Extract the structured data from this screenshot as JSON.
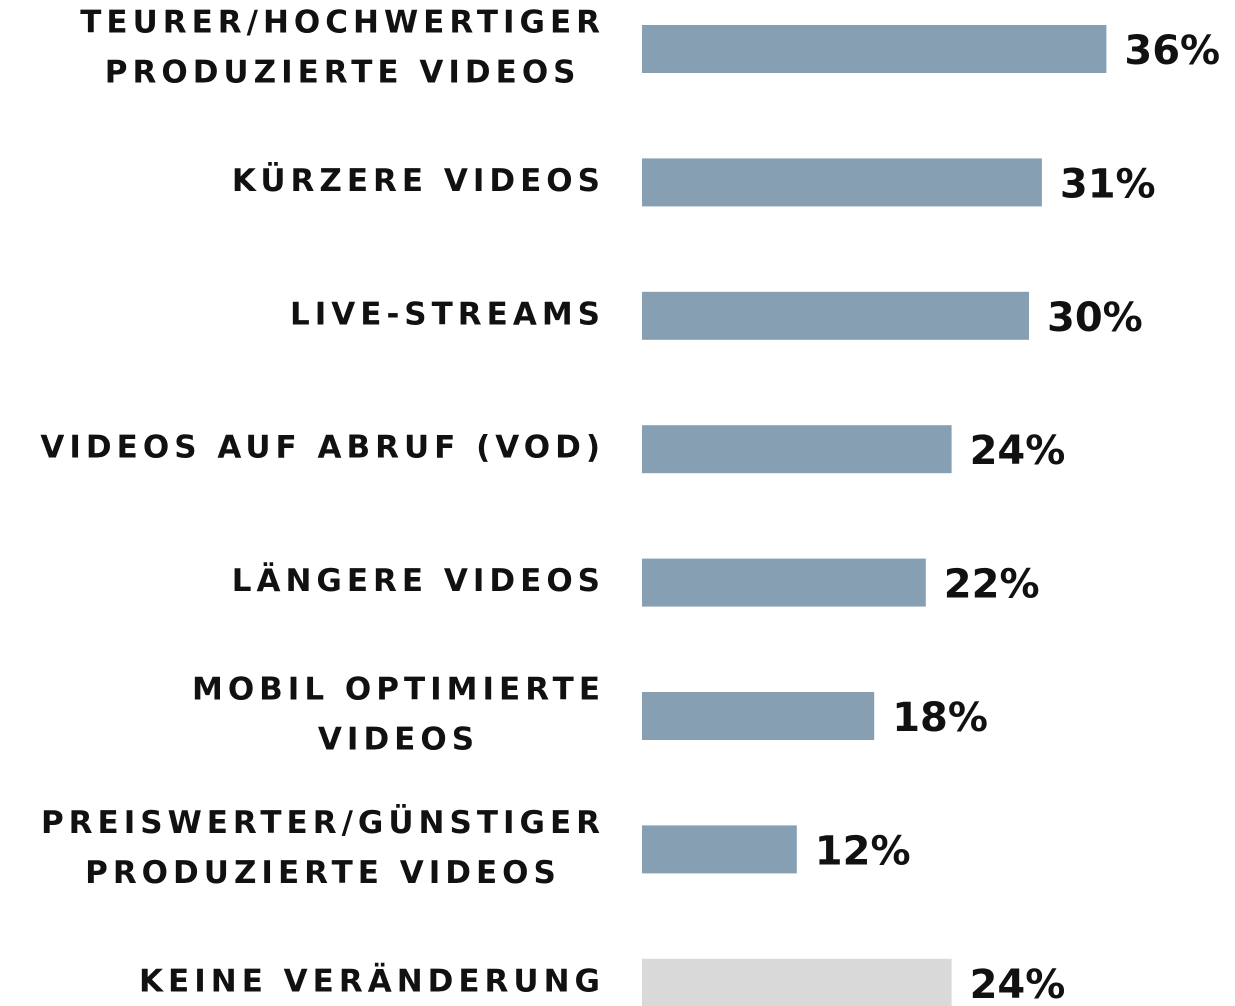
{
  "chart_data": {
    "type": "bar",
    "orientation": "horizontal",
    "categories": [
      [
        "TEURER/HOCHWERTIGER",
        "PRODUZIERTE VIDEOS"
      ],
      [
        "KÜRZERE VIDEOS"
      ],
      [
        "LIVE-STREAMS"
      ],
      [
        "VIDEOS AUF ABRUF (VOD)"
      ],
      [
        "LÄNGERE VIDEOS"
      ],
      [
        "MOBIL OPTIMIERTE",
        "VIDEOS"
      ],
      [
        "PREISWERTER/GÜNSTIGER",
        "PRODUZIERTE VIDEOS"
      ],
      [
        "KEINE VERÄNDERUNG"
      ]
    ],
    "values": [
      36,
      31,
      30,
      24,
      22,
      18,
      12,
      24
    ],
    "value_labels": [
      "36%",
      "31%",
      "30%",
      "24%",
      "22%",
      "18%",
      "12%",
      "24%"
    ],
    "colors": [
      "#879fb2",
      "#879fb2",
      "#879fb2",
      "#879fb2",
      "#879fb2",
      "#879fb2",
      "#879fb2",
      "#d9d9d9"
    ]
  }
}
